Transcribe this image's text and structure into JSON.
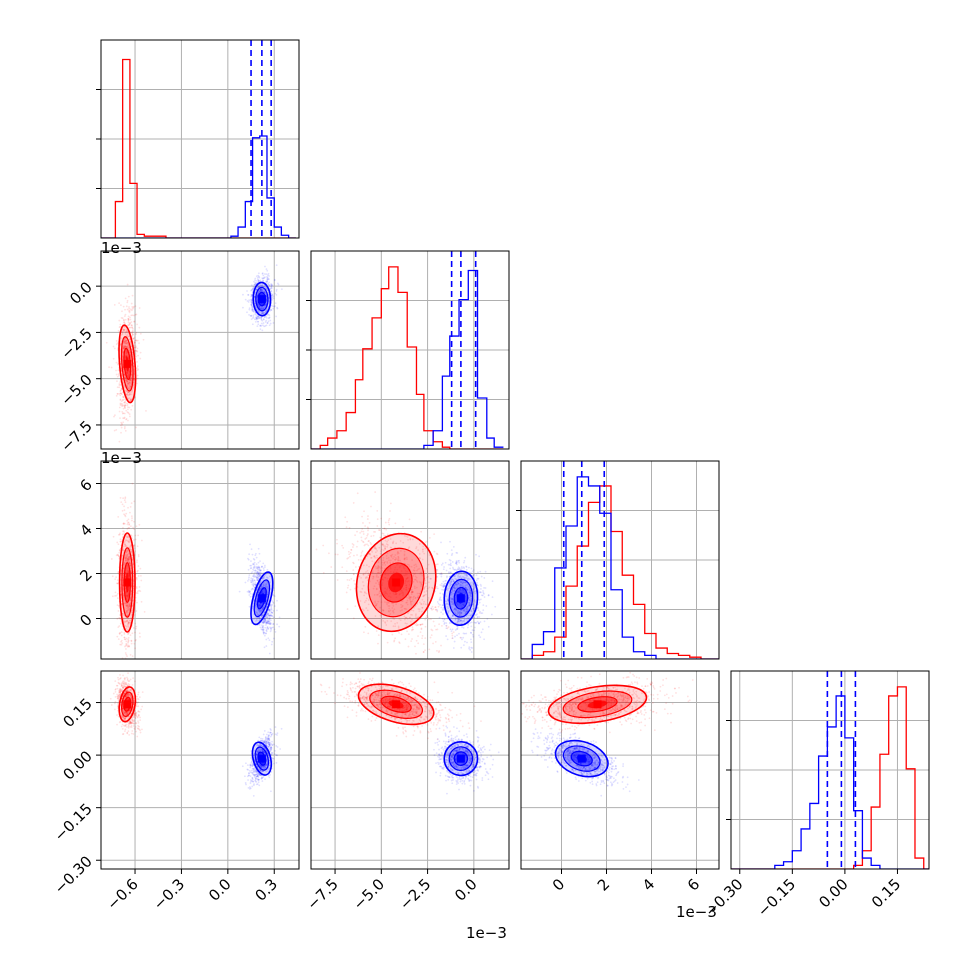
{
  "chart_data": {
    "type": "corner",
    "colors": {
      "series_a": "#ff0000",
      "series_b": "#0000ff",
      "grid": "#b0b0b0"
    },
    "series": [
      {
        "color": "#ff0000",
        "centers": {
          "p0": -0.65,
          "p1": -0.0042,
          "p2": 0.0016,
          "p3": 0.145
        }
      },
      {
        "color": "#0000ff",
        "centers": {
          "p0": 0.22,
          "p1": -0.0007,
          "p2": 0.0009,
          "p3": -0.01
        }
      }
    ],
    "axes": [
      {
        "key": "p0",
        "range": [
          -0.82,
          0.46
        ],
        "ticks": [
          -0.6,
          -0.3,
          0.0,
          0.3
        ],
        "tick_labels": [
          "−0.6",
          "−0.3",
          "0.0",
          "0.3"
        ]
      },
      {
        "key": "p1",
        "range": [
          -0.0088,
          0.0019
        ],
        "ticks": [
          -0.0075,
          -0.005,
          -0.0025,
          0.0
        ],
        "tick_labels": [
          "−7.5",
          "−5.0",
          "−2.5",
          "0.0"
        ],
        "offset_text": "1e−3"
      },
      {
        "key": "p2",
        "range": [
          -0.0018,
          0.007
        ],
        "ticks": [
          0.0,
          0.002,
          0.004,
          0.006
        ],
        "tick_labels": [
          "0",
          "2",
          "4",
          "6"
        ],
        "offset_text": "1e−3"
      },
      {
        "key": "p3",
        "range": [
          -0.325,
          0.24
        ],
        "ticks": [
          -0.3,
          -0.15,
          0.0,
          0.15
        ],
        "tick_labels": [
          "−0.30",
          "−0.15",
          "0.00",
          "0.15"
        ]
      }
    ],
    "diagonal_histograms": [
      {
        "axis": "p0",
        "bin_edges": [
          -0.82,
          -0.773,
          -0.727,
          -0.68,
          -0.633,
          -0.587,
          -0.54,
          -0.493,
          -0.447,
          -0.4,
          -0.354,
          -0.307,
          -0.26,
          -0.214,
          -0.167,
          -0.12,
          -0.074,
          -0.027,
          0.02,
          0.066,
          0.113,
          0.16,
          0.206,
          0.253,
          0.3,
          0.346,
          0.393,
          0.44
        ],
        "red_counts": [
          0,
          0,
          0.2,
          0.98,
          0.3,
          0.02,
          0.01,
          0.01,
          0.01,
          0,
          0,
          0,
          0,
          0,
          0,
          0,
          0,
          0,
          0,
          0,
          0,
          0,
          0,
          0,
          0,
          0,
          0
        ],
        "blue_counts": [
          0,
          0,
          0,
          0,
          0,
          0,
          0,
          0,
          0,
          0,
          0,
          0,
          0,
          0,
          0,
          0,
          0,
          0,
          0.01,
          0.06,
          0.2,
          0.55,
          0.56,
          0.22,
          0.06,
          0.015,
          0
        ],
        "quantiles": [
          0.15,
          0.22,
          0.28
        ]
      },
      {
        "axis": "p1",
        "bin_edges": [
          -0.0088,
          -0.0083,
          -0.0079,
          -0.0074,
          -0.0069,
          -0.0064,
          -0.006,
          -0.0055,
          -0.005,
          -0.0046,
          -0.0041,
          -0.0036,
          -0.0031,
          -0.0027,
          -0.0022,
          -0.0017,
          -0.0013,
          -0.0008,
          -0.0003,
          0.0002,
          0.0007,
          0.0011,
          0.0016
        ],
        "red_counts": [
          0,
          0.02,
          0.06,
          0.1,
          0.2,
          0.38,
          0.55,
          0.72,
          0.88,
          1.0,
          0.86,
          0.56,
          0.3,
          0.1,
          0.04,
          0.01,
          0,
          0,
          0,
          0,
          0,
          0
        ],
        "blue_counts": [
          0,
          0,
          0,
          0,
          0,
          0,
          0,
          0,
          0,
          0,
          0,
          0,
          0,
          0.02,
          0.1,
          0.4,
          0.62,
          0.82,
          0.98,
          0.28,
          0.06,
          0.01
        ],
        "quantiles": [
          -0.0012,
          -0.0007,
          0.0001
        ]
      },
      {
        "axis": "p2",
        "bin_edges": [
          -0.0018,
          -0.0013,
          -0.0008,
          -0.0003,
          0.0002,
          0.0007,
          0.0012,
          0.0017,
          0.0022,
          0.0027,
          0.0032,
          0.0037,
          0.0042,
          0.0047,
          0.0052,
          0.0057,
          0.0062,
          0.0067,
          0.007
        ],
        "red_counts": [
          0,
          0.02,
          0.04,
          0.12,
          0.4,
          0.62,
          0.86,
          0.95,
          0.7,
          0.46,
          0.3,
          0.14,
          0.06,
          0.03,
          0.02,
          0.01,
          0,
          0
        ],
        "blue_counts": [
          0,
          0.08,
          0.15,
          0.5,
          0.73,
          1.0,
          0.95,
          0.8,
          0.38,
          0.12,
          0.04,
          0.02,
          0,
          0,
          0,
          0,
          0,
          0
        ],
        "quantiles": [
          0.0001,
          0.0009,
          0.0019
        ]
      },
      {
        "axis": "p3",
        "bin_edges": [
          -0.325,
          -0.3,
          -0.275,
          -0.25,
          -0.225,
          -0.2,
          -0.175,
          -0.15,
          -0.125,
          -0.1,
          -0.075,
          -0.05,
          -0.025,
          0.0,
          0.025,
          0.05,
          0.075,
          0.1,
          0.125,
          0.15,
          0.175,
          0.2,
          0.225,
          0.24
        ],
        "red_counts": [
          0,
          0,
          0,
          0,
          0,
          0,
          0,
          0,
          0,
          0,
          0,
          0,
          0,
          0,
          0.02,
          0.1,
          0.34,
          0.63,
          0.95,
          1.0,
          0.55,
          0.06,
          0
        ],
        "blue_counts": [
          0,
          0,
          0,
          0,
          0,
          0.02,
          0.04,
          0.1,
          0.22,
          0.36,
          0.62,
          0.78,
          0.95,
          0.72,
          0.32,
          0.06,
          0.02,
          0,
          0,
          0,
          0,
          0,
          0
        ],
        "quantiles": [
          -0.05,
          -0.01,
          0.03
        ]
      }
    ],
    "grid": true
  }
}
